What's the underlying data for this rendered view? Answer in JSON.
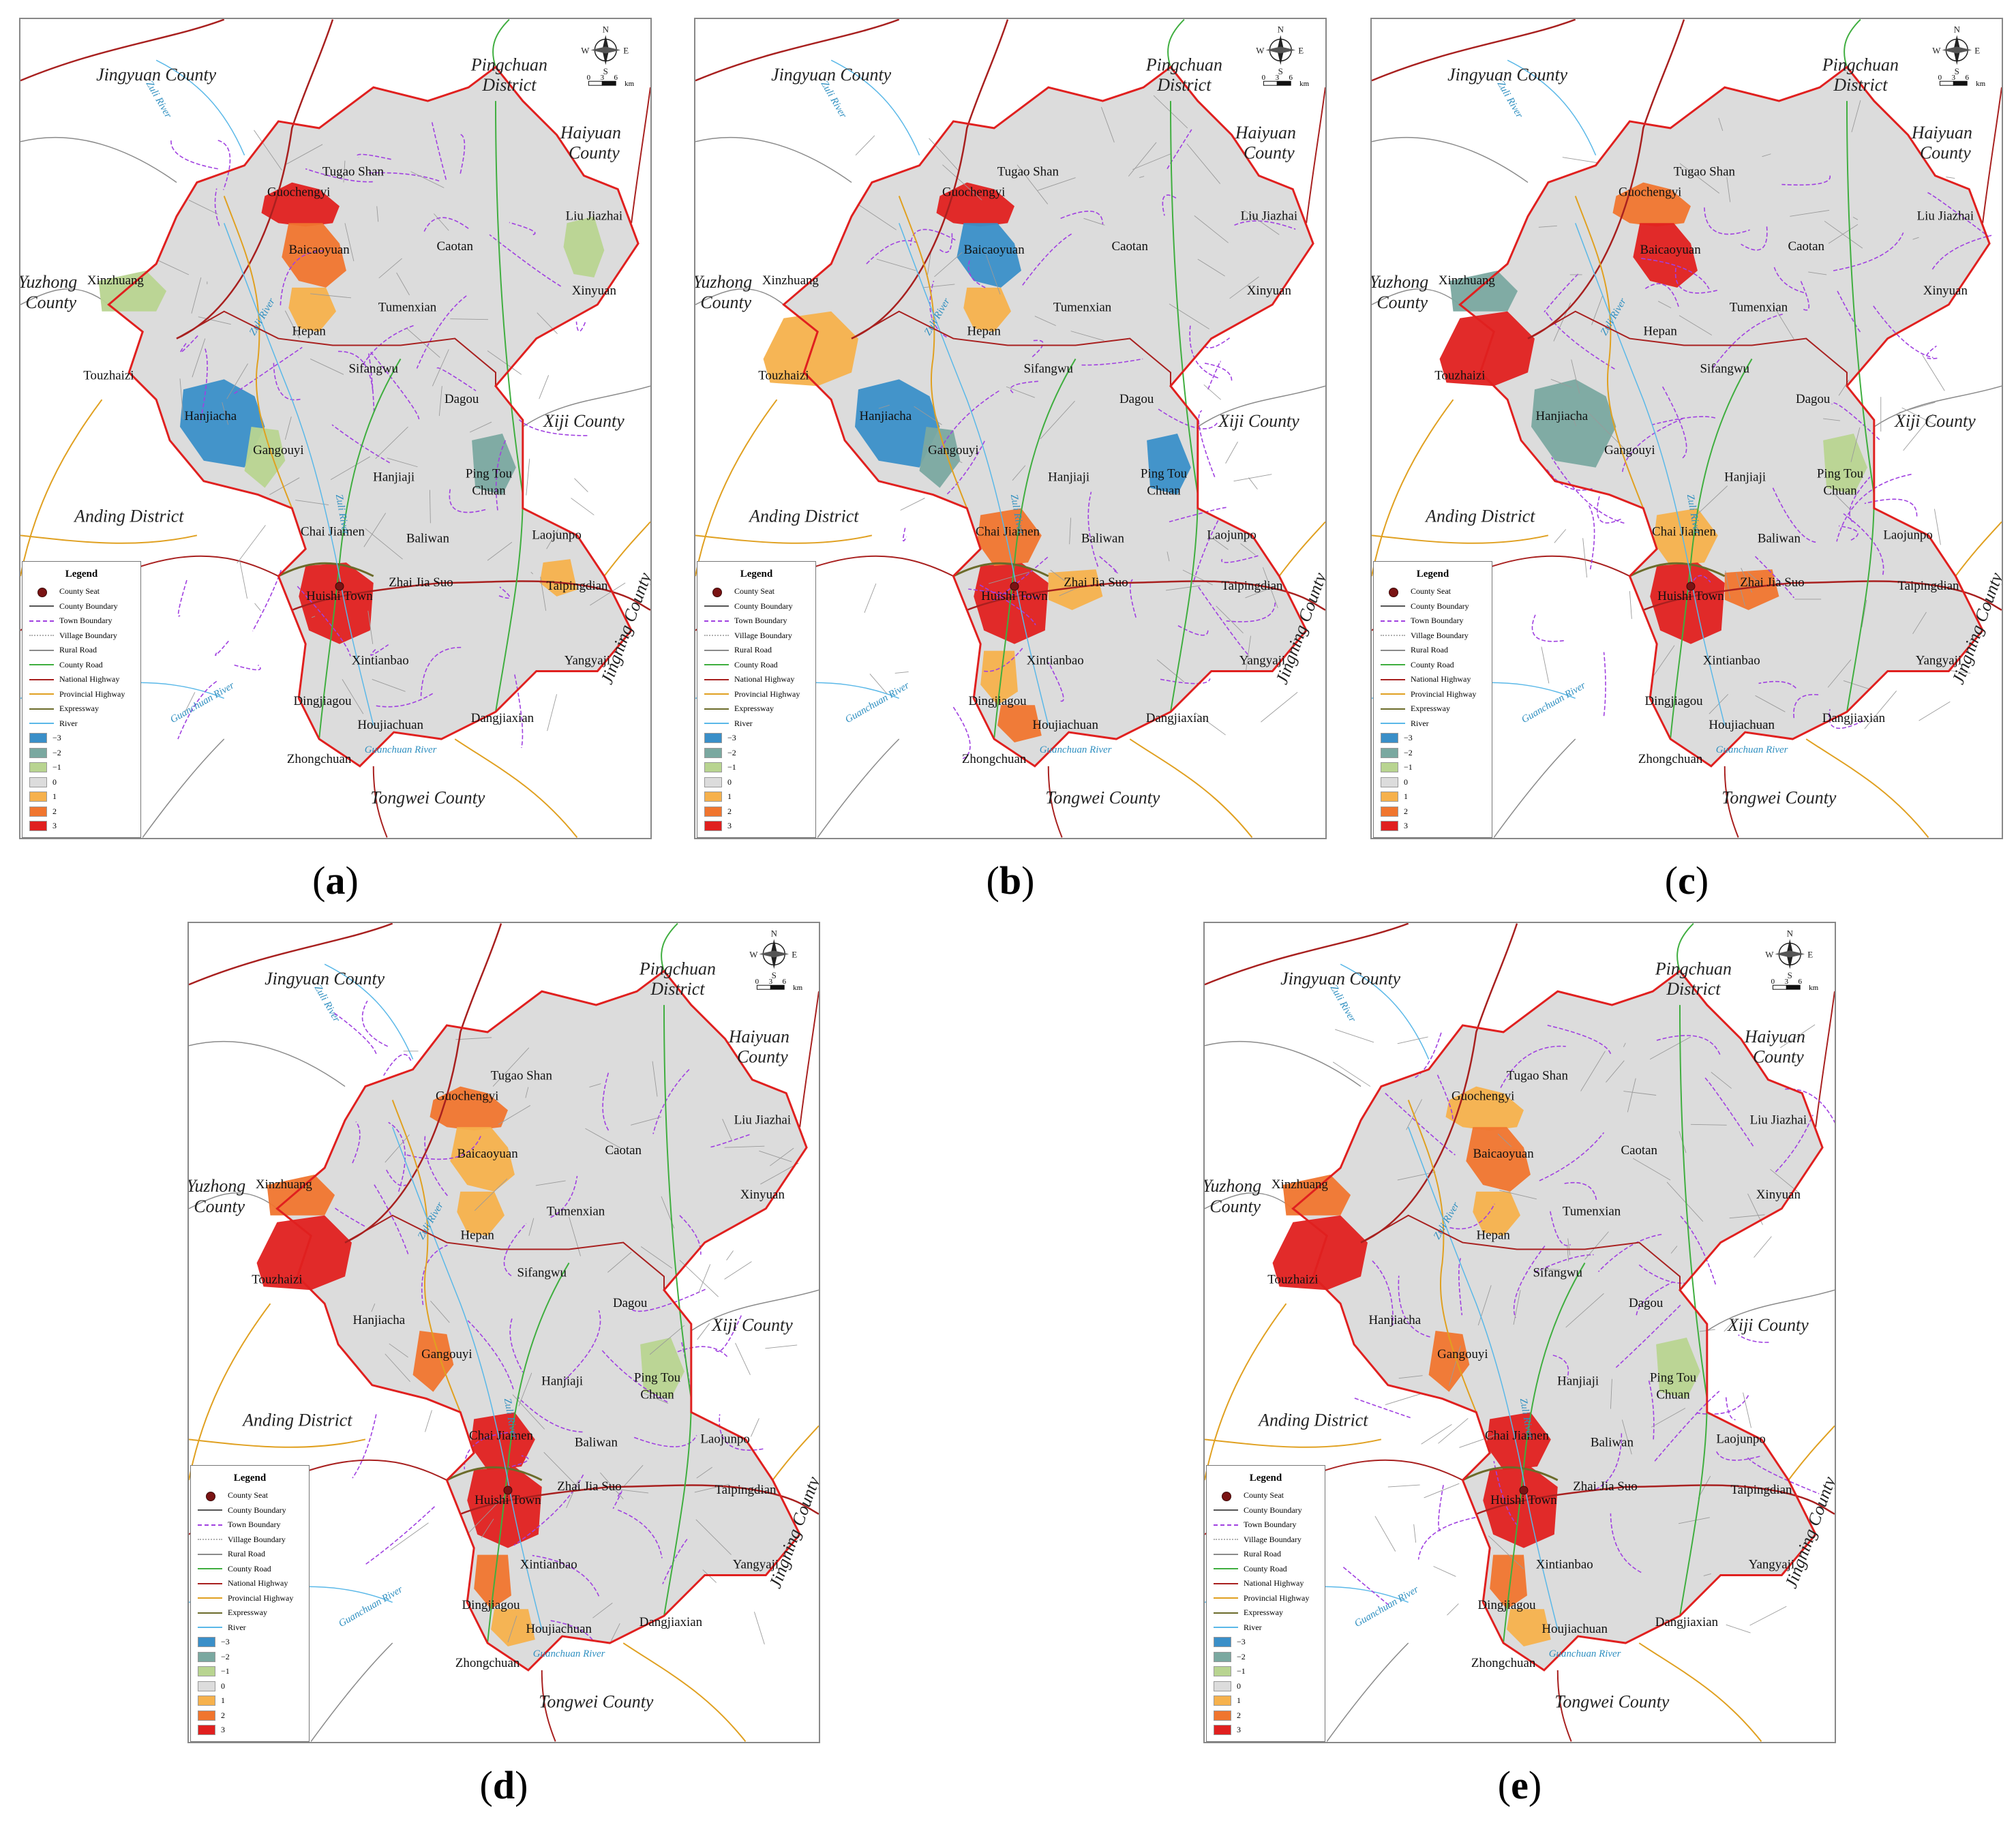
{
  "maps": [
    {
      "id": "a",
      "caption": "a",
      "bins": {
        "Guochengyi": 3,
        "Baicaoyuan": 2,
        "Hepan": 1,
        "Xinzhuang": -1,
        "Xinyuan": -1,
        "Hanjiacha": -3,
        "Gangouyi": -1,
        "Ping Tou Chuan": -2,
        "Huishi Town": 3,
        "Taipingdian": 1,
        "Chai Jiamen": 0,
        "Touzhaizi": 0,
        "Dingjiagou": 0,
        "Zhongchuan": 0
      }
    },
    {
      "id": "b",
      "caption": "b",
      "bins": {
        "Guochengyi": 3,
        "Baicaoyuan": -3,
        "Hepan": 1,
        "Touzhaizi": 1,
        "Hanjiacha": -3,
        "Gangouyi": -2,
        "Ping Tou Chuan": -3,
        "Huishi Town": 3,
        "Chai Jiamen": 2,
        "Zhai Jia Suo": 1,
        "Dingjiagou": 1,
        "Zhongchuan": 2,
        "Xinzhuang": 0,
        "Xinyuan": 0
      }
    },
    {
      "id": "c",
      "caption": "c",
      "bins": {
        "Guochengyi": 2,
        "Baicaoyuan": 3,
        "Xinzhuang": -2,
        "Touzhaizi": 3,
        "Hanjiacha": -2,
        "Ping Tou Chuan": -1,
        "Chai Jiamen": 1,
        "Huishi Town": 3,
        "Zhai Jia Suo": 2,
        "Xinyuan": 0,
        "Hepan": 0,
        "Dingjiagou": 0,
        "Zhongchuan": 0
      }
    },
    {
      "id": "d",
      "caption": "d",
      "bins": {
        "Guochengyi": 2,
        "Baicaoyuan": 1,
        "Xinzhuang": 2,
        "Touzhaizi": 3,
        "Hepan": 1,
        "Gangouyi": 2,
        "Chai Jiamen": 3,
        "Huishi Town": 3,
        "Dingjiagou": 2,
        "Zhongchuan": 1,
        "Ping Tou Chuan": -1,
        "Hanjiacha": 0,
        "Xinyuan": 0
      }
    },
    {
      "id": "e",
      "caption": "e",
      "bins": {
        "Guochengyi": 1,
        "Baicaoyuan": 2,
        "Xinzhuang": 2,
        "Touzhaizi": 3,
        "Hepan": 1,
        "Gangouyi": 2,
        "Chai Jiamen": 3,
        "Huishi Town": 3,
        "Dingjiagou": 2,
        "Zhongchuan": 1,
        "Ping Tou Chuan": -1,
        "Hanjiacha": 0,
        "Xinyuan": 0
      }
    }
  ],
  "place_labels": {
    "towns": [
      "Tugao Shan",
      "Guochengyi",
      "Liu Jiazhai",
      "Caotan",
      "Baicaoyuan",
      "Xinzhuang",
      "Xinyuan",
      "Tumenxian",
      "Hepan",
      "Sifangwu",
      "Touzhaizi",
      "Dagou",
      "Hanjiacha",
      "Gangouyi",
      "Hanjiaji",
      "Ping Tou",
      "Chuan",
      "Chai Jiamen",
      "Baliwan",
      "Laojunpo",
      "Zhai Jia Suo",
      "Taipingdian",
      "Huishi Town",
      "Xintianbao",
      "Yangyaji",
      "Dingjiagou",
      "Houjiachuan",
      "Dangjiaxian",
      "Zhongchuan"
    ],
    "neighbors": [
      "Jingyuan County",
      "Pingchuan",
      "District",
      "Haiyuan",
      "County",
      "Yuzhong",
      "County",
      "Xiji County",
      "Anding District",
      "Jingning County",
      "Tongwei County"
    ],
    "rivers": [
      "Zuli River",
      "Guanchuan River",
      "Guanchuan River",
      "Zuli River",
      "Zuli River"
    ]
  },
  "compass": {
    "n": "N",
    "s": "S",
    "e": "E",
    "w": "W",
    "scale_labels": [
      "0",
      "3",
      "6"
    ],
    "unit": "km"
  },
  "legend": {
    "title": "Legend",
    "lines": [
      {
        "label": "County Seat",
        "kind": "dot",
        "color": "#7a1313"
      },
      {
        "label": "County Boundary",
        "kind": "line",
        "color": "#555555"
      },
      {
        "label": "Town Boundary",
        "kind": "dash",
        "color": "#a040e0"
      },
      {
        "label": "Village Boundary",
        "kind": "dot-line",
        "color": "#b0b0b0"
      },
      {
        "label": "Rural Road",
        "kind": "line",
        "color": "#8a8a8a"
      },
      {
        "label": "County Road",
        "kind": "line",
        "color": "#3fae3f"
      },
      {
        "label": "National Highway",
        "kind": "line",
        "color": "#a8201f"
      },
      {
        "label": "Provincial Highway",
        "kind": "line",
        "color": "#e0a020"
      },
      {
        "label": "Expressway",
        "kind": "line",
        "color": "#6b6b2a"
      },
      {
        "label": "River",
        "kind": "line",
        "color": "#5ab8e8"
      }
    ],
    "classes": [
      {
        "label": "−3",
        "color": "#3a8fc8"
      },
      {
        "label": "−2",
        "color": "#7aa8a0"
      },
      {
        "label": "−1",
        "color": "#b8d490"
      },
      {
        "label": "0",
        "color": "#dcdcdc"
      },
      {
        "label": "1",
        "color": "#f6b14c"
      },
      {
        "label": "2",
        "color": "#f0752e"
      },
      {
        "label": "3",
        "color": "#e0201f"
      }
    ]
  }
}
